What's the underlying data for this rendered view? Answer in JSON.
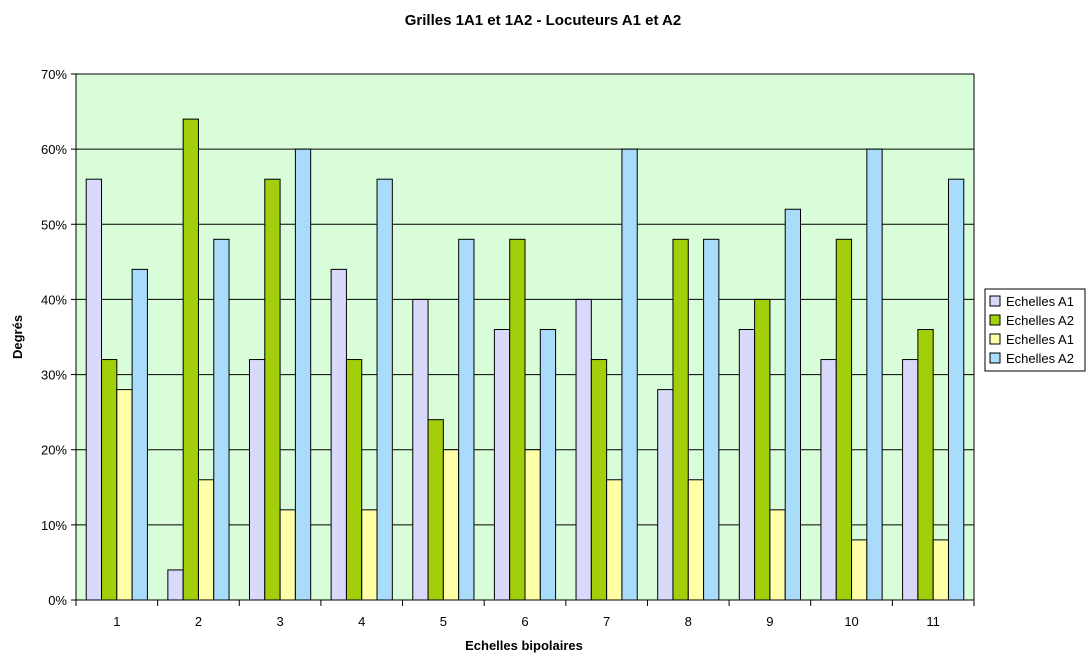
{
  "chart_data": {
    "type": "bar",
    "title": "Grilles 1A1 et 1A2 - Locuteurs A1 et A2",
    "xlabel": "Echelles bipolaires",
    "ylabel": "Degrés",
    "ylim": [
      0,
      70
    ],
    "ytick_step": 10,
    "ytick_labels": [
      "0%",
      "10%",
      "20%",
      "30%",
      "40%",
      "50%",
      "60%",
      "70%"
    ],
    "grid": true,
    "legend_position": "right",
    "plot_background": "#d9fdd9",
    "categories": [
      "1",
      "2",
      "3",
      "4",
      "5",
      "6",
      "7",
      "8",
      "9",
      "10",
      "11"
    ],
    "series": [
      {
        "name": "Echelles A1",
        "color": "#d9d9fb",
        "values": [
          56,
          4,
          32,
          44,
          40,
          36,
          40,
          28,
          36,
          32,
          32
        ]
      },
      {
        "name": "Echelles A2",
        "color": "#a2ce0a",
        "values": [
          32,
          64,
          56,
          32,
          24,
          48,
          32,
          48,
          40,
          48,
          36
        ]
      },
      {
        "name": "Echelles A1",
        "color": "#ffffa8",
        "values": [
          28,
          16,
          12,
          12,
          20,
          20,
          16,
          16,
          12,
          8,
          8
        ]
      },
      {
        "name": "Echelles A2",
        "color": "#a9dcfb",
        "values": [
          44,
          48,
          60,
          56,
          48,
          36,
          60,
          48,
          52,
          60,
          56
        ]
      }
    ]
  }
}
